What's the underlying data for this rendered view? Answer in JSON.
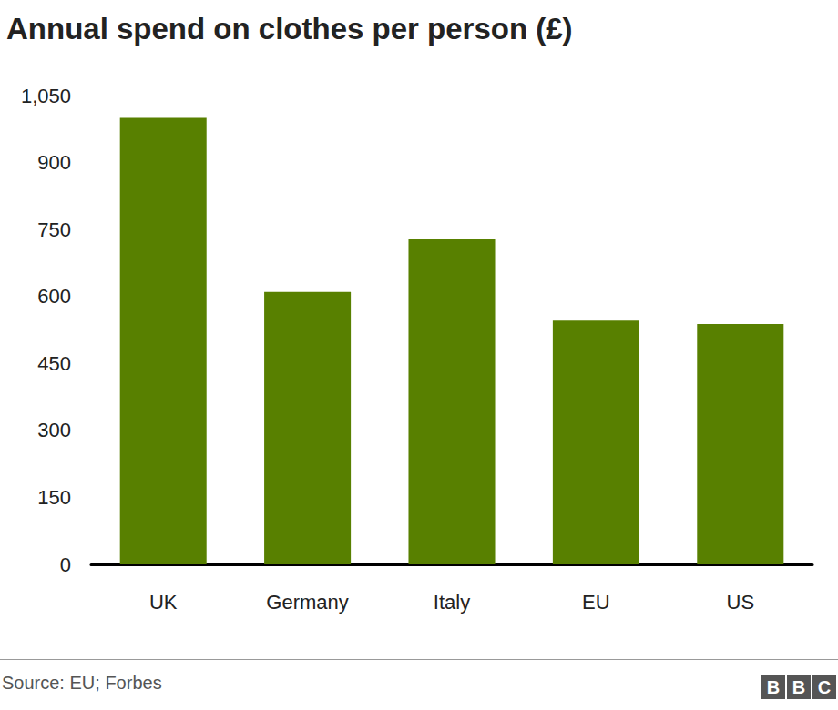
{
  "chart_data": {
    "type": "bar",
    "title": "Annual spend on clothes per person (£)",
    "categories": [
      "UK",
      "Germany",
      "Italy",
      "EU",
      "US"
    ],
    "values": [
      1000,
      610,
      728,
      546,
      538
    ],
    "color": "#588000",
    "ylim": [
      0,
      1050
    ],
    "yticks": [
      0,
      150,
      300,
      450,
      600,
      750,
      900,
      {
        "value": 1050,
        "label": "1,050"
      }
    ],
    "grid": false,
    "source": "Source: EU; Forbes",
    "credit": "BBC"
  }
}
